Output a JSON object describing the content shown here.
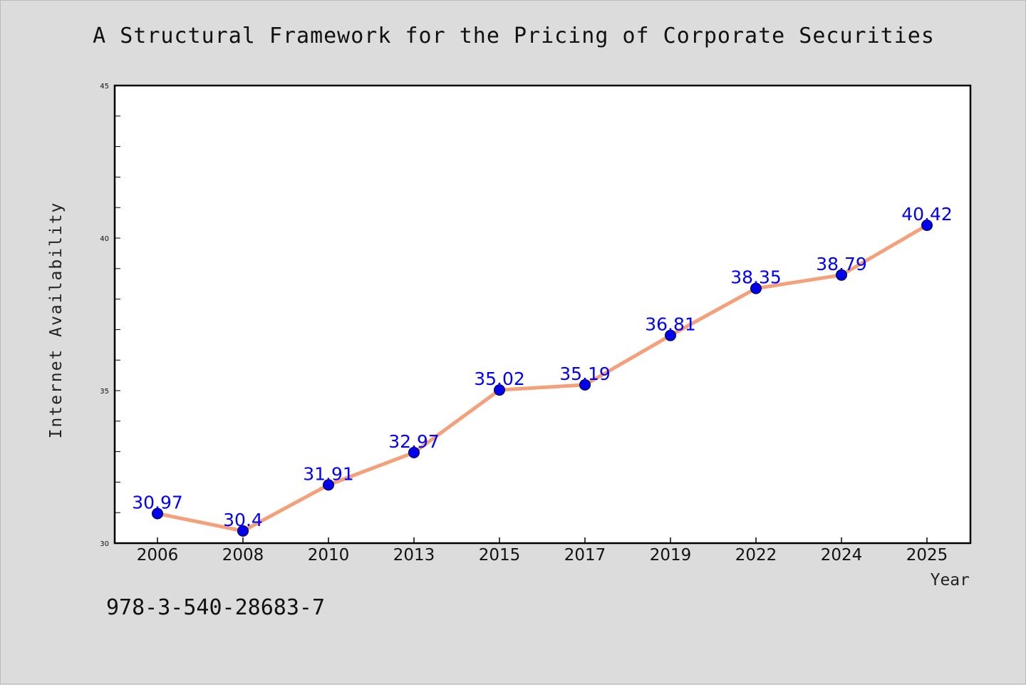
{
  "chart_data": {
    "type": "line",
    "title": "A Structural Framework for the Pricing of Corporate Securities",
    "xlabel": "Year",
    "ylabel": "Internet Availability",
    "categories": [
      "2006",
      "2008",
      "2010",
      "2013",
      "2015",
      "2017",
      "2019",
      "2022",
      "2024",
      "2025"
    ],
    "series": [
      {
        "values": [
          30.97,
          30.4,
          31.91,
          32.97,
          35.02,
          35.19,
          36.81,
          38.35,
          38.79,
          40.42
        ],
        "labels": [
          "30.97",
          "30.4",
          "31.91",
          "32.97",
          "35.02",
          "35.19",
          "36.81",
          "38.35",
          "38.79",
          "40.42"
        ]
      }
    ],
    "ylim": [
      30,
      45
    ],
    "yticks": [
      "30",
      "35",
      "40",
      "45"
    ],
    "grid": false,
    "line_color": "#f4a07a",
    "marker_color": "#0000ee",
    "label_color": "#0000ff"
  },
  "footer": {
    "isbn": "978-3-540-28683-7"
  }
}
